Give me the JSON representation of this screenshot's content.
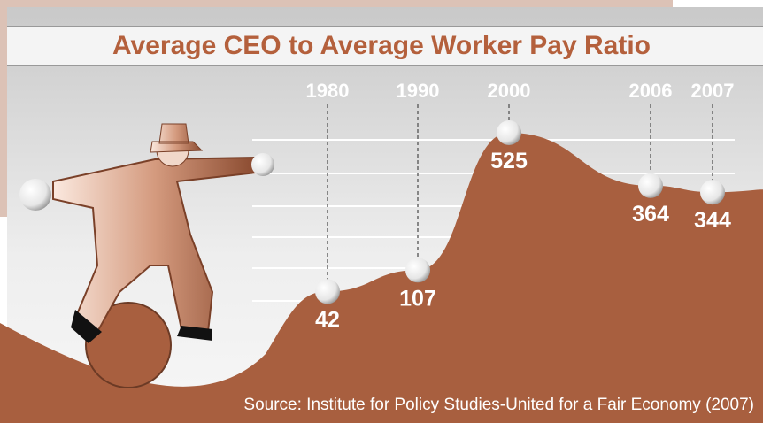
{
  "chart_data": {
    "type": "area",
    "title": "Average CEO to Average Worker Pay Ratio",
    "categories": [
      "1980",
      "1990",
      "2000",
      "2006",
      "2007"
    ],
    "values": [
      42,
      107,
      525,
      364,
      344
    ],
    "color": "#a85f3f",
    "source": "Source: Institute for Policy Studies-United for a Fair Economy (2007)"
  }
}
